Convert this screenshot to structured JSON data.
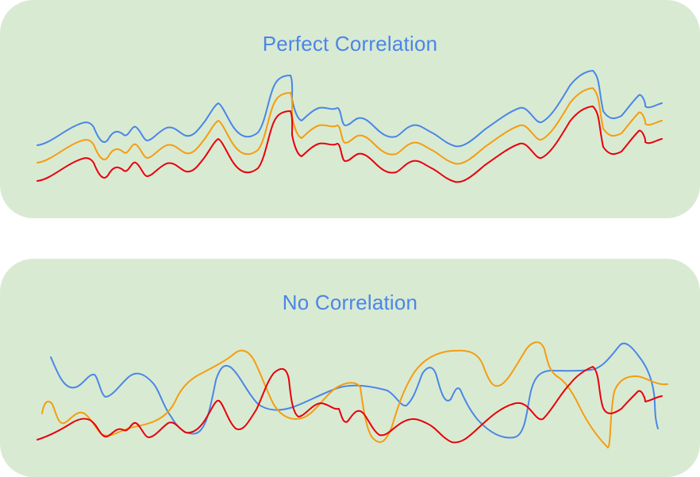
{
  "panels": [
    {
      "title": "Perfect Correlation",
      "title_color": "#4a86e8",
      "series": [
        {
          "color": "#4a86e8"
        },
        {
          "color": "#f59d0e"
        },
        {
          "color": "#e8000b"
        }
      ]
    },
    {
      "title": "No Correlation",
      "title_color": "#4a86e8",
      "series": [
        {
          "color": "#4a86e8"
        },
        {
          "color": "#f59d0e"
        },
        {
          "color": "#e8000b"
        }
      ]
    }
  ],
  "colors": {
    "panel_background": "#d9ead3",
    "page_background": "#ffffff"
  }
}
